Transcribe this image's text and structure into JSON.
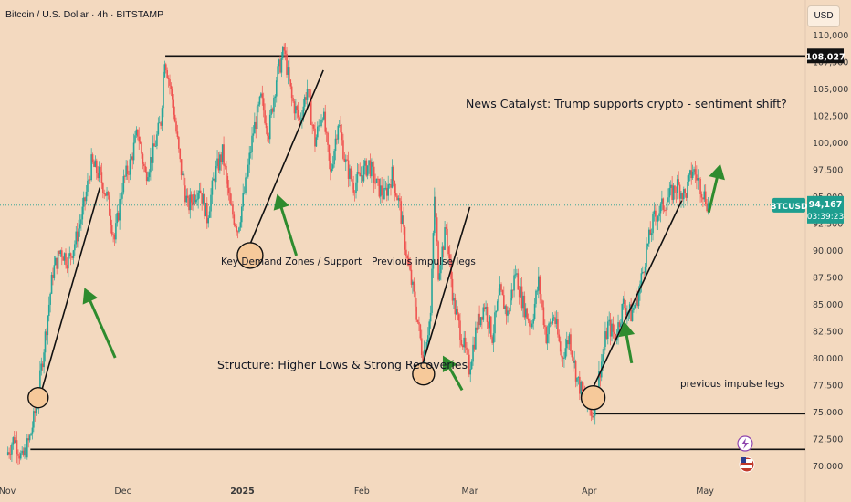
{
  "header": {
    "symbol_title": "Bitcoin / U.S. Dollar · 4h · BITSTAMP",
    "currency_button": "USD"
  },
  "price_labels": {
    "resistance_tag": "108,027",
    "ticker": "BTCUSD",
    "last_price": "94,167",
    "countdown": "03:39:23"
  },
  "annotations": {
    "news": "News Catalyst: Trump supports crypto - sentiment shift?",
    "demand": "Key Demand Zones / Support",
    "impulse_upper": "Previous impulse legs",
    "structure": "Structure: Higher Lows & Strong Recoveries",
    "impulse_lower": "previous impulse legs"
  },
  "colors": {
    "background": "#f3d9bf",
    "up_candle": "#26a69a",
    "down_candle": "#ef5350",
    "arrow": "#2e8b2e",
    "circle_fill": "#f6c99a",
    "ticker_bg": "#1e9e8f"
  },
  "chart_data": {
    "type": "candlestick",
    "title": "Bitcoin / U.S. Dollar · 4h · BITSTAMP",
    "y_ticks": [
      "110,000",
      "107,500",
      "105,000",
      "102,500",
      "100,000",
      "97,500",
      "95,000",
      "92,500",
      "90,000",
      "87,500",
      "85,000",
      "82,500",
      "80,000",
      "77,500",
      "75,000",
      "72,500",
      "70,000"
    ],
    "y_tick_values": [
      110000,
      107500,
      105000,
      102500,
      100000,
      97500,
      95000,
      92500,
      90000,
      87500,
      85000,
      82500,
      80000,
      77500,
      75000,
      72500,
      70000
    ],
    "x_ticks": [
      "Nov",
      "Dec",
      "2025",
      "Feb",
      "Mar",
      "Apr",
      "May"
    ],
    "ylim": [
      69000,
      111500
    ],
    "x_range_days": [
      0,
      190
    ],
    "x_tick_days": [
      0,
      30,
      61,
      92,
      120,
      151,
      181
    ],
    "last_price": 94167,
    "horizontal_levels": [
      {
        "name": "resistance",
        "value": 108027,
        "from_day": 41
      },
      {
        "name": "support_low",
        "value": 71500,
        "from_day": 6
      },
      {
        "name": "support_apr",
        "value": 74800,
        "from_day": 152
      }
    ],
    "price_path": [
      [
        0,
        71000
      ],
      [
        2,
        72600
      ],
      [
        4,
        70500
      ],
      [
        6,
        72500
      ],
      [
        8,
        76000
      ],
      [
        10,
        82000
      ],
      [
        12,
        88000
      ],
      [
        14,
        90000
      ],
      [
        16,
        89000
      ],
      [
        18,
        91000
      ],
      [
        20,
        94000
      ],
      [
        22,
        98000
      ],
      [
        24,
        97000
      ],
      [
        26,
        95000
      ],
      [
        28,
        91000
      ],
      [
        30,
        96000
      ],
      [
        32,
        98000
      ],
      [
        34,
        101000
      ],
      [
        36,
        97000
      ],
      [
        38,
        99000
      ],
      [
        40,
        102000
      ],
      [
        41,
        108000
      ],
      [
        43,
        104000
      ],
      [
        45,
        98000
      ],
      [
        47,
        94000
      ],
      [
        50,
        96000
      ],
      [
        52,
        93000
      ],
      [
        54,
        97000
      ],
      [
        56,
        99000
      ],
      [
        58,
        94000
      ],
      [
        60,
        92000
      ],
      [
        62,
        96000
      ],
      [
        64,
        101000
      ],
      [
        66,
        104000
      ],
      [
        68,
        101000
      ],
      [
        70,
        106000
      ],
      [
        72,
        108500
      ],
      [
        74,
        104000
      ],
      [
        76,
        102000
      ],
      [
        78,
        105000
      ],
      [
        80,
        100000
      ],
      [
        82,
        103000
      ],
      [
        84,
        97000
      ],
      [
        86,
        102000
      ],
      [
        88,
        98000
      ],
      [
        90,
        96000
      ],
      [
        92,
        97000
      ],
      [
        94,
        98000
      ],
      [
        96,
        96000
      ],
      [
        98,
        95000
      ],
      [
        100,
        97000
      ],
      [
        102,
        94000
      ],
      [
        104,
        89000
      ],
      [
        106,
        85000
      ],
      [
        108,
        80000
      ],
      [
        110,
        84000
      ],
      [
        111,
        95000
      ],
      [
        112,
        88000
      ],
      [
        114,
        92000
      ],
      [
        116,
        85000
      ],
      [
        118,
        82000
      ],
      [
        120,
        79000
      ],
      [
        122,
        83000
      ],
      [
        124,
        85000
      ],
      [
        126,
        82000
      ],
      [
        128,
        86000
      ],
      [
        130,
        84000
      ],
      [
        132,
        88000
      ],
      [
        134,
        85000
      ],
      [
        136,
        83000
      ],
      [
        138,
        87000
      ],
      [
        140,
        82000
      ],
      [
        142,
        84000
      ],
      [
        144,
        80000
      ],
      [
        146,
        82000
      ],
      [
        148,
        78000
      ],
      [
        150,
        76000
      ],
      [
        152,
        74800
      ],
      [
        154,
        79000
      ],
      [
        156,
        83000
      ],
      [
        158,
        82000
      ],
      [
        160,
        85000
      ],
      [
        162,
        84000
      ],
      [
        164,
        86000
      ],
      [
        166,
        90000
      ],
      [
        168,
        93000
      ],
      [
        170,
        94000
      ],
      [
        172,
        95000
      ],
      [
        174,
        96000
      ],
      [
        176,
        95000
      ],
      [
        178,
        97500
      ],
      [
        180,
        96000
      ],
      [
        182,
        94167
      ]
    ]
  }
}
